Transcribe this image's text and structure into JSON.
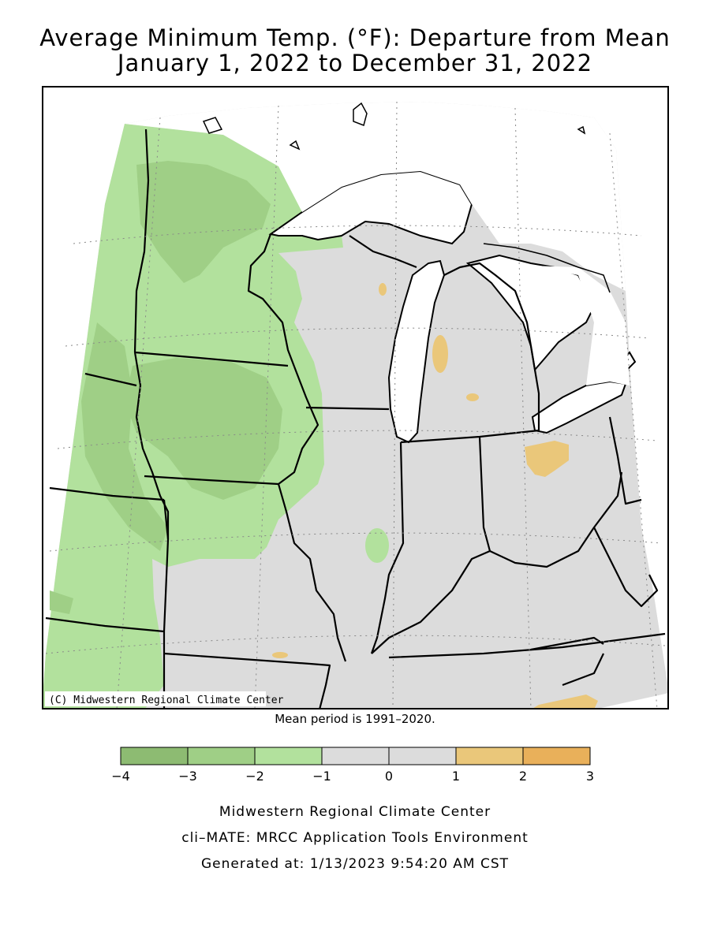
{
  "title": {
    "line1": "Average Minimum Temp. (°F): Departure from Mean",
    "line2": "January 1, 2022 to December 31, 2022"
  },
  "copyright": "(C) Midwestern Regional Climate Center",
  "mean_period": "Mean period is 1991–2020.",
  "legend": {
    "ticks": [
      "−4",
      "−3",
      "−2",
      "−1",
      "0",
      "1",
      "2",
      "3"
    ],
    "colors": [
      "#8dbb72",
      "#9fcf86",
      "#b2e19d",
      "#dcdcdc",
      "#dcdcdc",
      "#eac77a",
      "#e9b05a"
    ]
  },
  "colors": {
    "land_neutral": "#dcdcdc",
    "green_light": "#b2e19d",
    "green_mid": "#9fcf86",
    "green_dark": "#8dbb72",
    "orange_light": "#eac77a",
    "water": "#ffffff"
  },
  "footer": {
    "line1": "Midwestern Regional Climate Center",
    "line2": "cli–MATE: MRCC Application Tools Environment",
    "line3": "Generated at: 1/13/2023 9:54:20 AM CST"
  }
}
